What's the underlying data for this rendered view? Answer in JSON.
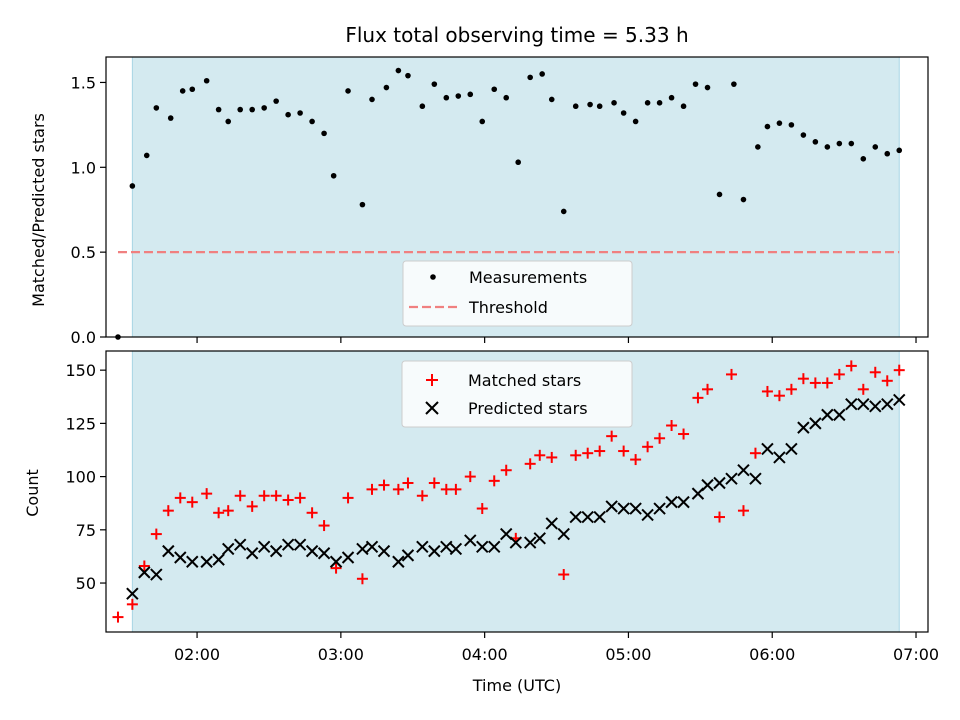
{
  "chart_data": [
    {
      "type": "scatter",
      "title": "Flux total observing time = 5.33 h",
      "ylabel": "Matched/Predicted stars",
      "xlabel": "",
      "x_unit": "time (UTC)",
      "xlim": [
        "01:22",
        "07:05"
      ],
      "ylim": [
        0,
        1.65
      ],
      "yticks": [
        0.0,
        0.5,
        1.0,
        1.5
      ],
      "ytick_labels": [
        "0.0",
        "0.5",
        "1.0",
        "1.5"
      ],
      "observing_window": [
        "01:33",
        "06:53"
      ],
      "threshold": {
        "value": 0.5,
        "from": "01:27",
        "to": "06:53",
        "color": "#f08080",
        "style": "dashed"
      },
      "legend": {
        "placement": "lower center",
        "entries": [
          "Measurements",
          "Threshold"
        ]
      },
      "series": [
        {
          "name": "Measurements",
          "color": "#000000",
          "marker": "dot",
          "points": [
            [
              "01:27",
              0.0
            ],
            [
              "01:33",
              0.89
            ],
            [
              "01:39",
              1.07
            ],
            [
              "01:43",
              1.35
            ],
            [
              "01:49",
              1.29
            ],
            [
              "01:54",
              1.45
            ],
            [
              "01:58",
              1.46
            ],
            [
              "02:04",
              1.51
            ],
            [
              "02:09",
              1.34
            ],
            [
              "02:13",
              1.27
            ],
            [
              "02:18",
              1.34
            ],
            [
              "02:23",
              1.34
            ],
            [
              "02:28",
              1.35
            ],
            [
              "02:33",
              1.39
            ],
            [
              "02:38",
              1.31
            ],
            [
              "02:43",
              1.32
            ],
            [
              "02:48",
              1.27
            ],
            [
              "02:53",
              1.2
            ],
            [
              "02:57",
              0.95
            ],
            [
              "03:03",
              1.45
            ],
            [
              "03:09",
              0.78
            ],
            [
              "03:13",
              1.4
            ],
            [
              "03:19",
              1.47
            ],
            [
              "03:24",
              1.57
            ],
            [
              "03:28",
              1.54
            ],
            [
              "03:34",
              1.36
            ],
            [
              "03:39",
              1.49
            ],
            [
              "03:44",
              1.41
            ],
            [
              "03:49",
              1.42
            ],
            [
              "03:54",
              1.43
            ],
            [
              "03:59",
              1.27
            ],
            [
              "04:04",
              1.46
            ],
            [
              "04:09",
              1.41
            ],
            [
              "04:14",
              1.03
            ],
            [
              "04:19",
              1.53
            ],
            [
              "04:24",
              1.55
            ],
            [
              "04:28",
              1.4
            ],
            [
              "04:33",
              0.74
            ],
            [
              "04:38",
              1.36
            ],
            [
              "04:44",
              1.37
            ],
            [
              "04:48",
              1.36
            ],
            [
              "04:54",
              1.38
            ],
            [
              "04:58",
              1.32
            ],
            [
              "05:03",
              1.27
            ],
            [
              "05:08",
              1.38
            ],
            [
              "05:13",
              1.38
            ],
            [
              "05:18",
              1.41
            ],
            [
              "05:23",
              1.36
            ],
            [
              "05:28",
              1.49
            ],
            [
              "05:33",
              1.47
            ],
            [
              "05:38",
              0.84
            ],
            [
              "05:44",
              1.49
            ],
            [
              "05:48",
              0.81
            ],
            [
              "05:54",
              1.12
            ],
            [
              "05:58",
              1.24
            ],
            [
              "06:03",
              1.26
            ],
            [
              "06:08",
              1.25
            ],
            [
              "06:13",
              1.19
            ],
            [
              "06:18",
              1.15
            ],
            [
              "06:23",
              1.12
            ],
            [
              "06:28",
              1.14
            ],
            [
              "06:33",
              1.14
            ],
            [
              "06:38",
              1.05
            ],
            [
              "06:43",
              1.12
            ],
            [
              "06:48",
              1.08
            ],
            [
              "06:53",
              1.1
            ]
          ]
        }
      ]
    },
    {
      "type": "scatter",
      "title": "",
      "ylabel": "Count",
      "xlabel": "Time (UTC)",
      "x_unit": "time (UTC)",
      "xlim": [
        "01:22",
        "07:05"
      ],
      "ylim": [
        27,
        159
      ],
      "yticks": [
        50,
        75,
        100,
        125,
        150
      ],
      "ytick_labels": [
        "50",
        "75",
        "100",
        "125",
        "150"
      ],
      "xticks": [
        "02:00",
        "03:00",
        "04:00",
        "05:00",
        "06:00",
        "07:00"
      ],
      "xtick_labels": [
        "02:00",
        "03:00",
        "04:00",
        "05:00",
        "06:00",
        "07:00"
      ],
      "observing_window": [
        "01:33",
        "06:53"
      ],
      "legend": {
        "placement": "upper center",
        "entries": [
          "Matched stars",
          "Predicted stars"
        ]
      },
      "series": [
        {
          "name": "Matched stars",
          "color": "#ff0000",
          "marker": "plus",
          "points": [
            [
              "01:27",
              34
            ],
            [
              "01:33",
              40
            ],
            [
              "01:38",
              58
            ],
            [
              "01:43",
              73
            ],
            [
              "01:48",
              84
            ],
            [
              "01:53",
              90
            ],
            [
              "01:58",
              88
            ],
            [
              "02:04",
              92
            ],
            [
              "02:09",
              83
            ],
            [
              "02:13",
              84
            ],
            [
              "02:18",
              91
            ],
            [
              "02:23",
              86
            ],
            [
              "02:28",
              91
            ],
            [
              "02:33",
              91
            ],
            [
              "02:38",
              89
            ],
            [
              "02:43",
              90
            ],
            [
              "02:48",
              83
            ],
            [
              "02:53",
              77
            ],
            [
              "02:58",
              57
            ],
            [
              "03:03",
              90
            ],
            [
              "03:09",
              52
            ],
            [
              "03:13",
              94
            ],
            [
              "03:18",
              96
            ],
            [
              "03:24",
              94
            ],
            [
              "03:28",
              97
            ],
            [
              "03:34",
              91
            ],
            [
              "03:39",
              97
            ],
            [
              "03:44",
              94
            ],
            [
              "03:48",
              94
            ],
            [
              "03:54",
              100
            ],
            [
              "03:59",
              85
            ],
            [
              "04:04",
              98
            ],
            [
              "04:09",
              103
            ],
            [
              "04:13",
              71
            ],
            [
              "04:19",
              106
            ],
            [
              "04:23",
              110
            ],
            [
              "04:28",
              109
            ],
            [
              "04:33",
              54
            ],
            [
              "04:38",
              110
            ],
            [
              "04:43",
              111
            ],
            [
              "04:48",
              112
            ],
            [
              "04:53",
              119
            ],
            [
              "04:58",
              112
            ],
            [
              "05:03",
              108
            ],
            [
              "05:08",
              114
            ],
            [
              "05:13",
              118
            ],
            [
              "05:18",
              124
            ],
            [
              "05:23",
              120
            ],
            [
              "05:29",
              137
            ],
            [
              "05:33",
              141
            ],
            [
              "05:38",
              81
            ],
            [
              "05:43",
              148
            ],
            [
              "05:48",
              84
            ],
            [
              "05:53",
              111
            ],
            [
              "05:58",
              140
            ],
            [
              "06:03",
              138
            ],
            [
              "06:08",
              141
            ],
            [
              "06:13",
              146
            ],
            [
              "06:18",
              144
            ],
            [
              "06:23",
              144
            ],
            [
              "06:28",
              148
            ],
            [
              "06:33",
              152
            ],
            [
              "06:38",
              141
            ],
            [
              "06:43",
              149
            ],
            [
              "06:48",
              145
            ],
            [
              "06:53",
              150
            ]
          ]
        },
        {
          "name": "Predicted stars",
          "color": "#000000",
          "marker": "x",
          "points": [
            [
              "01:33",
              45
            ],
            [
              "01:38",
              55
            ],
            [
              "01:43",
              54
            ],
            [
              "01:48",
              65
            ],
            [
              "01:53",
              62
            ],
            [
              "01:58",
              60
            ],
            [
              "02:04",
              60
            ],
            [
              "02:09",
              61
            ],
            [
              "02:13",
              66
            ],
            [
              "02:18",
              68
            ],
            [
              "02:23",
              64
            ],
            [
              "02:28",
              67
            ],
            [
              "02:33",
              65
            ],
            [
              "02:38",
              68
            ],
            [
              "02:43",
              68
            ],
            [
              "02:48",
              65
            ],
            [
              "02:53",
              64
            ],
            [
              "02:58",
              60
            ],
            [
              "03:03",
              62
            ],
            [
              "03:09",
              66
            ],
            [
              "03:13",
              67
            ],
            [
              "03:18",
              65
            ],
            [
              "03:24",
              60
            ],
            [
              "03:28",
              63
            ],
            [
              "03:34",
              67
            ],
            [
              "03:39",
              65
            ],
            [
              "03:44",
              67
            ],
            [
              "03:48",
              66
            ],
            [
              "03:54",
              70
            ],
            [
              "03:59",
              67
            ],
            [
              "04:04",
              67
            ],
            [
              "04:09",
              73
            ],
            [
              "04:13",
              69
            ],
            [
              "04:19",
              69
            ],
            [
              "04:23",
              71
            ],
            [
              "04:28",
              78
            ],
            [
              "04:33",
              73
            ],
            [
              "04:38",
              81
            ],
            [
              "04:43",
              81
            ],
            [
              "04:48",
              81
            ],
            [
              "04:53",
              86
            ],
            [
              "04:58",
              85
            ],
            [
              "05:03",
              85
            ],
            [
              "05:08",
              82
            ],
            [
              "05:13",
              85
            ],
            [
              "05:18",
              88
            ],
            [
              "05:23",
              88
            ],
            [
              "05:29",
              92
            ],
            [
              "05:33",
              96
            ],
            [
              "05:38",
              97
            ],
            [
              "05:43",
              99
            ],
            [
              "05:48",
              103
            ],
            [
              "05:53",
              99
            ],
            [
              "05:58",
              113
            ],
            [
              "06:03",
              109
            ],
            [
              "06:08",
              113
            ],
            [
              "06:13",
              123
            ],
            [
              "06:18",
              125
            ],
            [
              "06:23",
              129
            ],
            [
              "06:28",
              129
            ],
            [
              "06:33",
              134
            ],
            [
              "06:38",
              134
            ],
            [
              "06:43",
              133
            ],
            [
              "06:48",
              134
            ],
            [
              "06:53",
              136
            ]
          ]
        }
      ]
    }
  ],
  "colors": {
    "observing_window_fill": "#d4eaf0",
    "observing_window_edge": "#a9d6e5"
  }
}
